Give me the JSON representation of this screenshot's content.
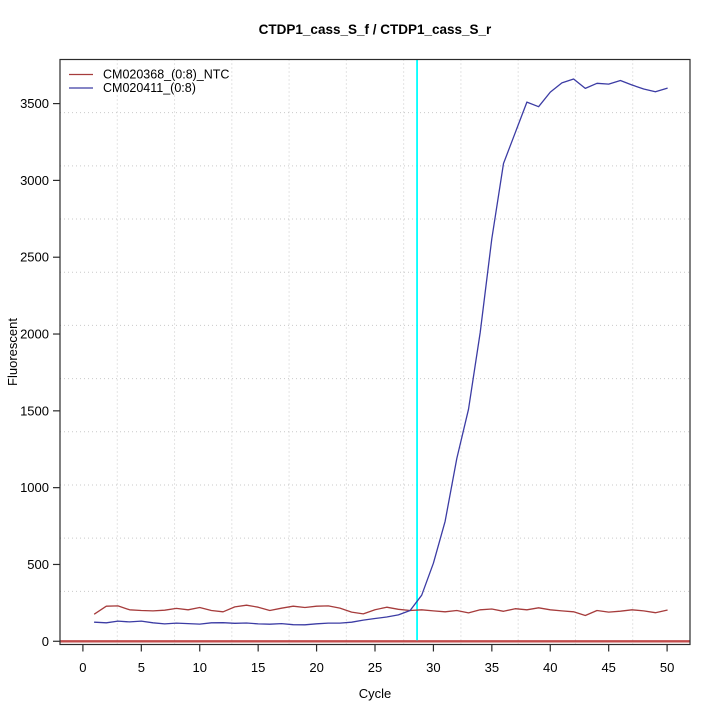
{
  "chart_data": {
    "type": "line",
    "title": "CTDP1_cass_S_f / CTDP1_cass_S_r",
    "xlabel": "Cycle",
    "ylabel": "Fluorescent",
    "x": [
      1,
      2,
      3,
      4,
      5,
      6,
      7,
      8,
      9,
      10,
      11,
      12,
      13,
      14,
      15,
      16,
      17,
      18,
      19,
      20,
      21,
      22,
      23,
      24,
      25,
      26,
      27,
      28,
      29,
      30,
      31,
      32,
      33,
      34,
      35,
      36,
      37,
      38,
      39,
      40,
      41,
      42,
      43,
      44,
      45,
      46,
      47,
      48,
      49,
      50
    ],
    "series": [
      {
        "name": "CM020368_(0:8)_NTC",
        "color": "#A63C3C",
        "values": [
          178,
          228,
          230,
          205,
          200,
          198,
          202,
          214,
          205,
          220,
          200,
          192,
          224,
          235,
          222,
          200,
          215,
          228,
          220,
          228,
          230,
          216,
          190,
          178,
          205,
          222,
          208,
          200,
          205,
          198,
          192,
          200,
          185,
          205,
          210,
          195,
          212,
          205,
          218,
          205,
          198,
          192,
          168,
          200,
          190,
          196,
          205,
          198,
          186,
          203
        ]
      },
      {
        "name": "CM020411_(0:8)",
        "color": "#3C3CA4",
        "values": [
          124,
          120,
          131,
          126,
          131,
          120,
          113,
          118,
          115,
          112,
          120,
          121,
          117,
          119,
          113,
          111,
          115,
          108,
          107,
          114,
          118,
          118,
          124,
          138,
          148,
          158,
          172,
          200,
          300,
          508,
          780,
          1190,
          1510,
          2010,
          2620,
          3110,
          3310,
          3510,
          3480,
          3575,
          3635,
          3660,
          3599,
          3632,
          3627,
          3650,
          3621,
          3595,
          3577,
          3600
        ]
      }
    ],
    "threshold_line": {
      "value": 0,
      "color": "#C24B4B"
    },
    "ct_marker_line": {
      "cycle": 28.6,
      "color": "#00FFFF"
    },
    "xticks": [
      0,
      5,
      10,
      15,
      20,
      25,
      30,
      35,
      40,
      45,
      50
    ],
    "yticks": [
      0,
      500,
      1000,
      1500,
      2000,
      2500,
      3000,
      3500
    ],
    "xlim": [
      -1.96,
      51.96
    ],
    "ylim": [
      -21,
      3787
    ],
    "grid": {
      "cells_x": 11,
      "cells_y": 11,
      "color": "#C9C9C9",
      "style": "dotted"
    },
    "legend_position": "topleft"
  }
}
